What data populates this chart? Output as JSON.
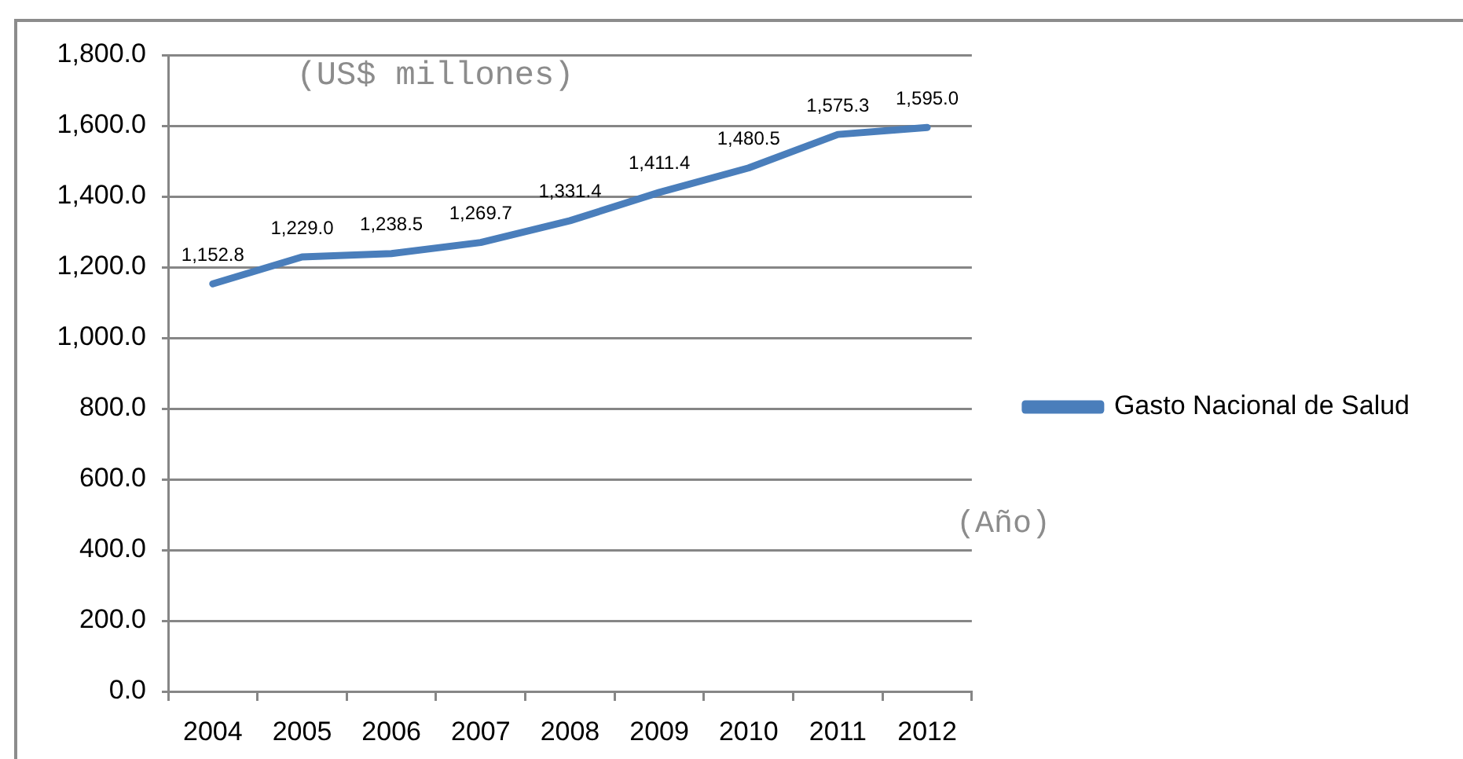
{
  "chart_data": {
    "type": "line",
    "xlabel": "(Año)",
    "ylabel": "(US$ millones)",
    "categories": [
      "2004",
      "2005",
      "2006",
      "2007",
      "2008",
      "2009",
      "2010",
      "2011",
      "2012"
    ],
    "series": [
      {
        "name": "Gasto Nacional de Salud",
        "color": "#4a7ebb",
        "values": [
          1152.8,
          1229.0,
          1238.5,
          1269.7,
          1331.4,
          1411.4,
          1480.5,
          1575.3,
          1595.0
        ],
        "value_labels": [
          "1,152.8",
          "1,229.0",
          "1,238.5",
          "1,269.7",
          "1,331.4",
          "1,411.4",
          "1,480.5",
          "1,575.3",
          "1,595.0"
        ]
      }
    ],
    "ylim": [
      0,
      1800
    ],
    "yticks": [
      {
        "value": 0,
        "label": "0.0"
      },
      {
        "value": 200,
        "label": "200.0"
      },
      {
        "value": 400,
        "label": "400.0"
      },
      {
        "value": 600,
        "label": "600.0"
      },
      {
        "value": 800,
        "label": "800.0"
      },
      {
        "value": 1000,
        "label": "1,000.0"
      },
      {
        "value": 1200,
        "label": "1,200.0"
      },
      {
        "value": 1400,
        "label": "1,400.0"
      },
      {
        "value": 1600,
        "label": "1,600.0"
      },
      {
        "value": 1800,
        "label": "1,800.0"
      }
    ],
    "grid": "y",
    "legend": "right",
    "marker": "none",
    "line_style": "solid"
  }
}
